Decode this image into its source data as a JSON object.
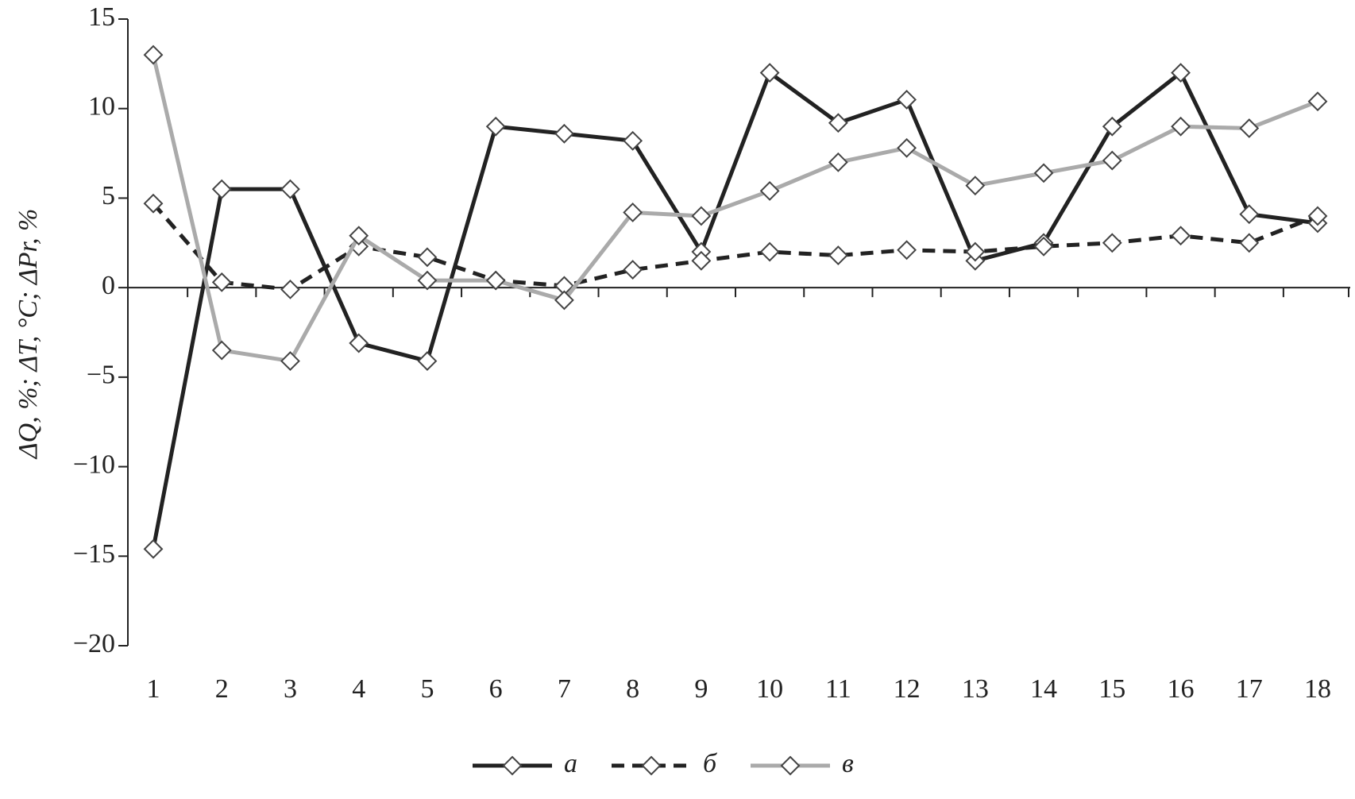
{
  "chart_data": {
    "type": "line",
    "y_label": "ΔQ, %; ΔT, °C; ΔPr, %",
    "categories": [
      "1",
      "2",
      "3",
      "4",
      "5",
      "6",
      "7",
      "8",
      "9",
      "10",
      "11",
      "12",
      "13",
      "14",
      "15",
      "16",
      "17",
      "18"
    ],
    "series": [
      {
        "name": "а",
        "color": "#222222",
        "dash": false,
        "values": [
          -14.6,
          5.5,
          5.5,
          -3.1,
          -4.1,
          9,
          8.6,
          8.2,
          2,
          12,
          9.2,
          10.5,
          1.5,
          2.5,
          9,
          12,
          4.1,
          3.6
        ]
      },
      {
        "name": "б",
        "color": "#222222",
        "dash": true,
        "values": [
          4.7,
          0.3,
          -0.1,
          2.3,
          1.7,
          0.4,
          0.1,
          1,
          1.5,
          2,
          1.8,
          2.1,
          2,
          2.3,
          2.5,
          2.9,
          2.5,
          4
        ]
      },
      {
        "name": "в",
        "color": "#aaaaaa",
        "dash": false,
        "values": [
          13,
          -3.5,
          -4.1,
          2.9,
          0.4,
          0.4,
          -0.7,
          4.2,
          4,
          5.4,
          7,
          7.8,
          5.7,
          6.4,
          7.1,
          9,
          8.9,
          10.4
        ]
      }
    ],
    "ylim": [
      -20,
      15
    ],
    "yticks": [
      {
        "value": -20,
        "label": "−20"
      },
      {
        "value": -15,
        "label": "−15"
      },
      {
        "value": -10,
        "label": "−10"
      },
      {
        "value": -5,
        "label": "−5"
      },
      0,
      5,
      10,
      15
    ],
    "legend": "bottom"
  }
}
